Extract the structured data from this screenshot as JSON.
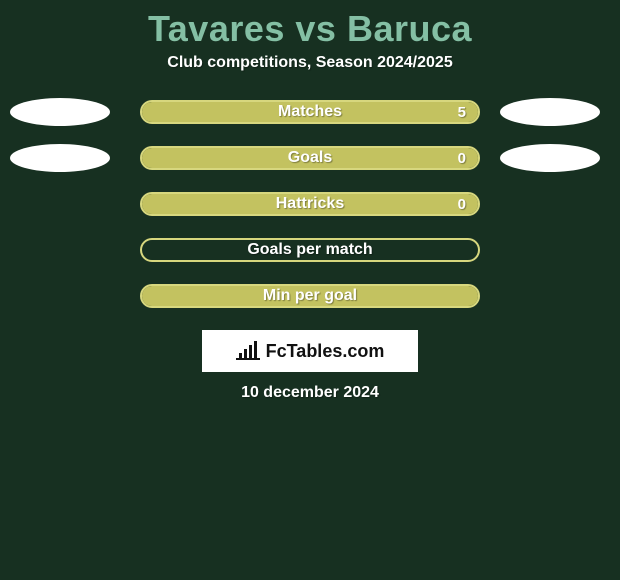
{
  "background_color": "#173021",
  "title": {
    "player1": "Tavares",
    "vs": "vs",
    "player2": "Baruca",
    "color": "#84bfa4",
    "fontsize": 36
  },
  "subtitle": {
    "text": "Club competitions, Season 2024/2025",
    "color": "#ffffff",
    "fontsize": 16
  },
  "ellipse": {
    "fill": "#ffffff",
    "width": 100,
    "height": 28
  },
  "bars": [
    {
      "label": "Matches",
      "value_right": "5",
      "fill_color": "#c3c260",
      "border_color": "#d7d77e",
      "fill_percent": 100,
      "show_left_ellipse": true,
      "show_right_ellipse": true
    },
    {
      "label": "Goals",
      "value_right": "0",
      "fill_color": "#c3c260",
      "border_color": "#d7d77e",
      "fill_percent": 100,
      "show_left_ellipse": true,
      "show_right_ellipse": true
    },
    {
      "label": "Hattricks",
      "value_right": "0",
      "fill_color": "#c3c260",
      "border_color": "#d7d77e",
      "fill_percent": 100,
      "show_left_ellipse": false,
      "show_right_ellipse": false
    },
    {
      "label": "Goals per match",
      "value_right": "",
      "fill_color": "transparent",
      "border_color": "#d7d77e",
      "fill_percent": 0,
      "show_left_ellipse": false,
      "show_right_ellipse": false
    },
    {
      "label": "Min per goal",
      "value_right": "",
      "fill_color": "#c3c260",
      "border_color": "#d7d77e",
      "fill_percent": 100,
      "show_left_ellipse": false,
      "show_right_ellipse": false
    }
  ],
  "bar_label_color": "#ffffff",
  "bar_value_color": "#ffffff",
  "logo": {
    "background": "#ffffff",
    "text": "FcTables.com",
    "text_color": "#111111",
    "icon_color": "#111111"
  },
  "date": {
    "text": "10 december 2024",
    "color": "#ffffff"
  }
}
